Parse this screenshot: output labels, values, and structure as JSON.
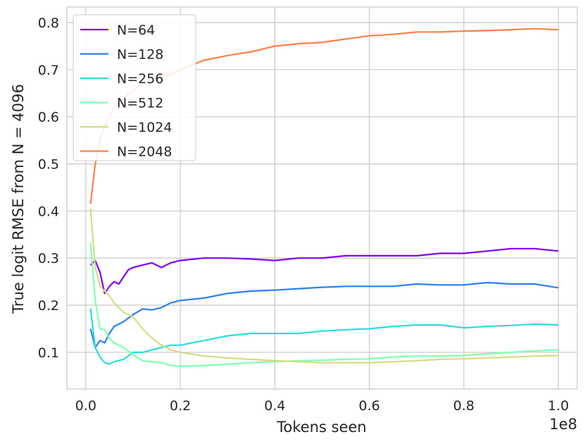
{
  "chart_data": {
    "type": "line",
    "xlabel": "Tokens seen",
    "ylabel": "True logit RMSE from N = 4096",
    "x_offset_label": "1e8",
    "xlim": [
      -0.04,
      1.04
    ],
    "ylim": [
      0.022,
      0.833
    ],
    "xticks": [
      0.0,
      0.2,
      0.4,
      0.6,
      0.8,
      1.0
    ],
    "xtick_labels": [
      "0.0",
      "0.2",
      "0.4",
      "0.6",
      "0.8",
      "1.0"
    ],
    "yticks": [
      0.1,
      0.2,
      0.3,
      0.4,
      0.5,
      0.6,
      0.7,
      0.8
    ],
    "ytick_labels": [
      "0.1",
      "0.2",
      "0.3",
      "0.4",
      "0.5",
      "0.6",
      "0.7",
      "0.8"
    ],
    "grid": true,
    "legend_position": "top-left",
    "series": [
      {
        "name": "N=64",
        "color": "#8000ff",
        "points": [
          [
            0.01,
            0.285
          ],
          [
            0.02,
            0.295
          ],
          [
            0.03,
            0.27
          ],
          [
            0.04,
            0.225
          ],
          [
            0.05,
            0.24
          ],
          [
            0.06,
            0.25
          ],
          [
            0.07,
            0.245
          ],
          [
            0.08,
            0.26
          ],
          [
            0.09,
            0.275
          ],
          [
            0.1,
            0.28
          ],
          [
            0.12,
            0.285
          ],
          [
            0.14,
            0.29
          ],
          [
            0.16,
            0.28
          ],
          [
            0.18,
            0.29
          ],
          [
            0.2,
            0.295
          ],
          [
            0.25,
            0.3
          ],
          [
            0.3,
            0.3
          ],
          [
            0.35,
            0.298
          ],
          [
            0.4,
            0.295
          ],
          [
            0.45,
            0.3
          ],
          [
            0.5,
            0.3
          ],
          [
            0.55,
            0.305
          ],
          [
            0.6,
            0.305
          ],
          [
            0.65,
            0.305
          ],
          [
            0.7,
            0.305
          ],
          [
            0.75,
            0.31
          ],
          [
            0.8,
            0.31
          ],
          [
            0.85,
            0.315
          ],
          [
            0.9,
            0.32
          ],
          [
            0.95,
            0.32
          ],
          [
            1.0,
            0.315
          ]
        ]
      },
      {
        "name": "N=128",
        "color": "#2c7ef7",
        "points": [
          [
            0.01,
            0.15
          ],
          [
            0.02,
            0.11
          ],
          [
            0.03,
            0.125
          ],
          [
            0.04,
            0.12
          ],
          [
            0.05,
            0.14
          ],
          [
            0.06,
            0.155
          ],
          [
            0.08,
            0.165
          ],
          [
            0.1,
            0.18
          ],
          [
            0.12,
            0.192
          ],
          [
            0.14,
            0.19
          ],
          [
            0.16,
            0.195
          ],
          [
            0.18,
            0.205
          ],
          [
            0.2,
            0.21
          ],
          [
            0.25,
            0.215
          ],
          [
            0.3,
            0.225
          ],
          [
            0.35,
            0.23
          ],
          [
            0.4,
            0.232
          ],
          [
            0.45,
            0.235
          ],
          [
            0.5,
            0.238
          ],
          [
            0.55,
            0.24
          ],
          [
            0.6,
            0.24
          ],
          [
            0.65,
            0.24
          ],
          [
            0.7,
            0.245
          ],
          [
            0.75,
            0.243
          ],
          [
            0.8,
            0.243
          ],
          [
            0.85,
            0.248
          ],
          [
            0.9,
            0.245
          ],
          [
            0.95,
            0.245
          ],
          [
            1.0,
            0.237
          ]
        ]
      },
      {
        "name": "N=256",
        "color": "#2adddd",
        "points": [
          [
            0.01,
            0.193
          ],
          [
            0.02,
            0.11
          ],
          [
            0.03,
            0.09
          ],
          [
            0.04,
            0.078
          ],
          [
            0.05,
            0.075
          ],
          [
            0.06,
            0.08
          ],
          [
            0.08,
            0.085
          ],
          [
            0.1,
            0.1
          ],
          [
            0.12,
            0.1
          ],
          [
            0.14,
            0.105
          ],
          [
            0.16,
            0.11
          ],
          [
            0.18,
            0.115
          ],
          [
            0.2,
            0.115
          ],
          [
            0.25,
            0.125
          ],
          [
            0.3,
            0.135
          ],
          [
            0.35,
            0.14
          ],
          [
            0.4,
            0.14
          ],
          [
            0.45,
            0.14
          ],
          [
            0.5,
            0.145
          ],
          [
            0.55,
            0.148
          ],
          [
            0.6,
            0.15
          ],
          [
            0.65,
            0.155
          ],
          [
            0.7,
            0.158
          ],
          [
            0.75,
            0.158
          ],
          [
            0.8,
            0.152
          ],
          [
            0.85,
            0.155
          ],
          [
            0.9,
            0.157
          ],
          [
            0.95,
            0.16
          ],
          [
            1.0,
            0.158
          ]
        ]
      },
      {
        "name": "N=512",
        "color": "#80ffb4",
        "points": [
          [
            0.01,
            0.333
          ],
          [
            0.02,
            0.21
          ],
          [
            0.03,
            0.15
          ],
          [
            0.04,
            0.148
          ],
          [
            0.05,
            0.13
          ],
          [
            0.06,
            0.12
          ],
          [
            0.08,
            0.11
          ],
          [
            0.1,
            0.095
          ],
          [
            0.12,
            0.082
          ],
          [
            0.14,
            0.08
          ],
          [
            0.16,
            0.078
          ],
          [
            0.18,
            0.072
          ],
          [
            0.2,
            0.07
          ],
          [
            0.25,
            0.072
          ],
          [
            0.3,
            0.075
          ],
          [
            0.35,
            0.078
          ],
          [
            0.4,
            0.08
          ],
          [
            0.45,
            0.082
          ],
          [
            0.5,
            0.083
          ],
          [
            0.55,
            0.085
          ],
          [
            0.6,
            0.086
          ],
          [
            0.65,
            0.09
          ],
          [
            0.7,
            0.092
          ],
          [
            0.75,
            0.092
          ],
          [
            0.8,
            0.093
          ],
          [
            0.85,
            0.097
          ],
          [
            0.9,
            0.1
          ],
          [
            0.95,
            0.103
          ],
          [
            1.0,
            0.105
          ]
        ]
      },
      {
        "name": "N=1024",
        "color": "#d4dd80",
        "points": [
          [
            0.01,
            0.405
          ],
          [
            0.02,
            0.28
          ],
          [
            0.03,
            0.24
          ],
          [
            0.04,
            0.23
          ],
          [
            0.05,
            0.22
          ],
          [
            0.06,
            0.205
          ],
          [
            0.08,
            0.185
          ],
          [
            0.1,
            0.175
          ],
          [
            0.12,
            0.15
          ],
          [
            0.14,
            0.13
          ],
          [
            0.16,
            0.115
          ],
          [
            0.18,
            0.105
          ],
          [
            0.2,
            0.1
          ],
          [
            0.25,
            0.092
          ],
          [
            0.3,
            0.088
          ],
          [
            0.35,
            0.085
          ],
          [
            0.4,
            0.082
          ],
          [
            0.45,
            0.08
          ],
          [
            0.5,
            0.078
          ],
          [
            0.55,
            0.078
          ],
          [
            0.6,
            0.078
          ],
          [
            0.65,
            0.08
          ],
          [
            0.7,
            0.082
          ],
          [
            0.75,
            0.085
          ],
          [
            0.8,
            0.086
          ],
          [
            0.85,
            0.088
          ],
          [
            0.9,
            0.09
          ],
          [
            0.95,
            0.092
          ],
          [
            1.0,
            0.093
          ]
        ]
      },
      {
        "name": "N=2048",
        "color": "#ff8047",
        "points": [
          [
            0.01,
            0.415
          ],
          [
            0.02,
            0.5
          ],
          [
            0.03,
            0.55
          ],
          [
            0.04,
            0.58
          ],
          [
            0.05,
            0.6
          ],
          [
            0.06,
            0.62
          ],
          [
            0.08,
            0.64
          ],
          [
            0.1,
            0.655
          ],
          [
            0.12,
            0.672
          ],
          [
            0.14,
            0.685
          ],
          [
            0.16,
            0.688
          ],
          [
            0.18,
            0.69
          ],
          [
            0.2,
            0.7
          ],
          [
            0.25,
            0.72
          ],
          [
            0.3,
            0.73
          ],
          [
            0.35,
            0.738
          ],
          [
            0.4,
            0.75
          ],
          [
            0.45,
            0.755
          ],
          [
            0.5,
            0.758
          ],
          [
            0.55,
            0.765
          ],
          [
            0.6,
            0.772
          ],
          [
            0.65,
            0.775
          ],
          [
            0.7,
            0.78
          ],
          [
            0.75,
            0.78
          ],
          [
            0.8,
            0.782
          ],
          [
            0.85,
            0.783
          ],
          [
            0.9,
            0.785
          ],
          [
            0.95,
            0.787
          ],
          [
            1.0,
            0.785
          ]
        ]
      }
    ]
  }
}
